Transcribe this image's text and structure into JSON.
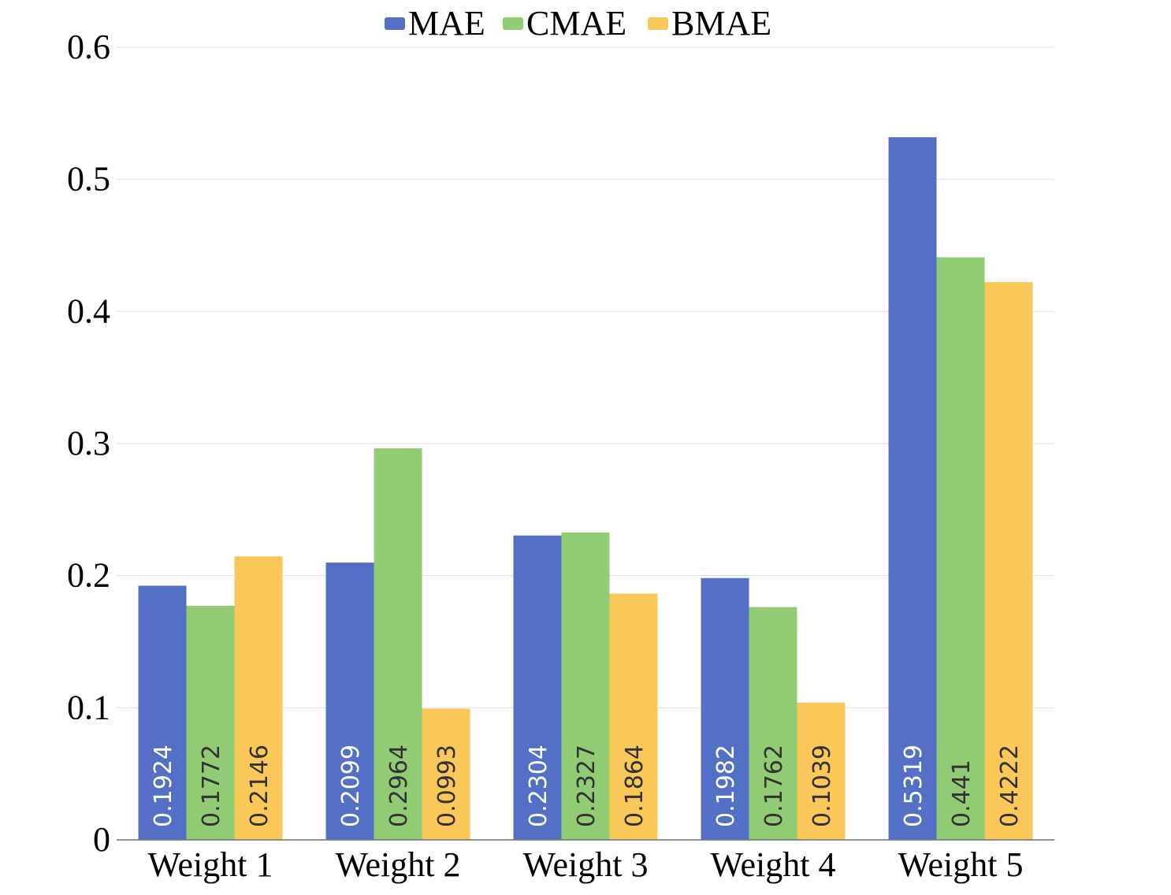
{
  "chart_data": {
    "type": "bar",
    "title": "",
    "xlabel": "",
    "ylabel": "",
    "categories": [
      "Weight 1",
      "Weight 2",
      "Weight 3",
      "Weight 4",
      "Weight 5"
    ],
    "series": [
      {
        "name": "MAE",
        "color": "#5470c6",
        "label_color": "#ffffff",
        "values": [
          0.1924,
          0.2099,
          0.2304,
          0.1982,
          0.5319
        ],
        "labels": [
          "0.1924",
          "0.2099",
          "0.2304",
          "0.1982",
          "0.5319"
        ]
      },
      {
        "name": "CMAE",
        "color": "#91cc75",
        "label_color": "#333333",
        "values": [
          0.1772,
          0.2964,
          0.2327,
          0.1762,
          0.441
        ],
        "labels": [
          "0.1772",
          "0.2964",
          "0.2327",
          "0.1762",
          "0.441"
        ]
      },
      {
        "name": "BMAE",
        "color": "#fac858",
        "label_color": "#333333",
        "values": [
          0.2146,
          0.0993,
          0.1864,
          0.1039,
          0.4222
        ],
        "labels": [
          "0.2146",
          "0.0993",
          "0.1864",
          "0.1039",
          "0.4222"
        ]
      }
    ],
    "ylim": [
      0,
      0.6
    ],
    "yticks": [
      0,
      0.1,
      0.2,
      0.3,
      0.4,
      0.5,
      0.6
    ],
    "ytick_labels": [
      "0",
      "0.1",
      "0.2",
      "0.3",
      "0.4",
      "0.5",
      "0.6"
    ],
    "grid": true,
    "legend_position": "top-center"
  }
}
